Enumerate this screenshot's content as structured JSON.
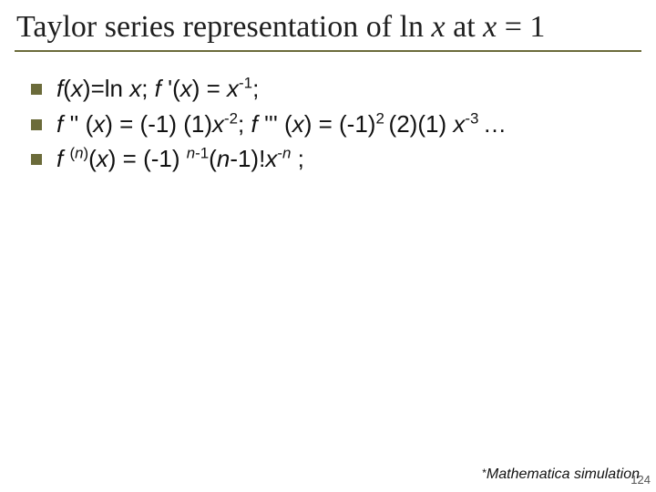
{
  "title": {
    "prefix": "Taylor series representation of ln ",
    "var1": "x",
    "mid": " at ",
    "var2": "x",
    "suffix": " = 1"
  },
  "bullets": [
    {
      "parts": [
        {
          "t": "f",
          "i": true
        },
        {
          "t": "("
        },
        {
          "t": "x",
          "i": true
        },
        {
          "t": ")=ln "
        },
        {
          "t": "x",
          "i": true
        },
        {
          "t": "; "
        },
        {
          "t": "f ",
          "i": true
        },
        {
          "t": "'("
        },
        {
          "t": "x",
          "i": true
        },
        {
          "t": ") = "
        },
        {
          "t": "x",
          "i": true
        },
        {
          "sup": "-1"
        },
        {
          "t": ";"
        }
      ]
    },
    {
      "parts": [
        {
          "t": " "
        },
        {
          "t": "f ",
          "i": true
        },
        {
          "t": "'' ("
        },
        {
          "t": "x",
          "i": true
        },
        {
          "t": ") = (-1) (1)"
        },
        {
          "t": "x",
          "i": true
        },
        {
          "sup": "-2"
        },
        {
          "t": "; "
        },
        {
          "t": "f ",
          "i": true
        },
        {
          "t": "''' ("
        },
        {
          "t": "x",
          "i": true
        },
        {
          "t": ") = (-1)"
        },
        {
          "sup": "2 "
        },
        {
          "t": "(2)(1) "
        },
        {
          "t": "x",
          "i": true
        },
        {
          "sup": "-3 "
        },
        {
          "t": "…"
        }
      ]
    },
    {
      "parts": [
        {
          "t": "f ",
          "i": true
        },
        {
          "sup": "(",
          "supi": false
        },
        {
          "sup": "n",
          "supi": true
        },
        {
          "sup": ")"
        },
        {
          "t": "("
        },
        {
          "t": "x",
          "i": true
        },
        {
          "t": ") = (-1) "
        },
        {
          "sup": "n",
          "supi": true
        },
        {
          "sup": "-1"
        },
        {
          "t": "("
        },
        {
          "t": "n",
          "i": true
        },
        {
          "t": "-1)!"
        },
        {
          "t": "x",
          "i": true
        },
        {
          "sup": "-"
        },
        {
          "sup": "n",
          "supi": true
        },
        {
          "t": " ;"
        }
      ]
    }
  ],
  "footer": {
    "star": "*",
    "text": "Mathematica simulation"
  },
  "page_number": "124",
  "colors": {
    "accent": "#6b6b3a",
    "text": "#111111",
    "title_text": "#1f1f1f",
    "background": "#ffffff"
  }
}
